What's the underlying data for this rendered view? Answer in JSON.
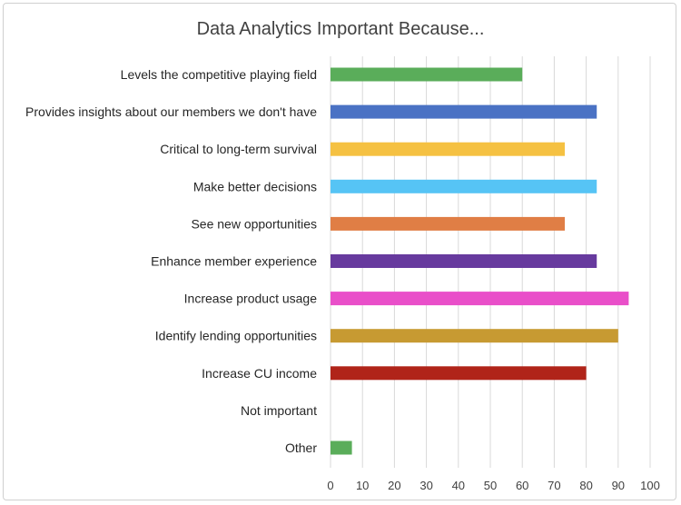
{
  "chart_data": {
    "type": "bar",
    "orientation": "horizontal",
    "title": "Data Analytics Important Because...",
    "categories": [
      "Levels the competitive playing field",
      "Provides insights about our members we don't have",
      "Critical to long-term survival",
      "Make better decisions",
      "See new opportunities",
      "Enhance member experience",
      "Increase product usage",
      "Identify lending opportunities",
      "Increase CU income",
      "Not important",
      "Other"
    ],
    "values": [
      60,
      83.3,
      73.3,
      83.3,
      73.3,
      83.3,
      93.3,
      90,
      80,
      0,
      6.7
    ],
    "colors": [
      "#5aad5a",
      "#4a72c4",
      "#f5c142",
      "#56c4f5",
      "#e07e45",
      "#673a9e",
      "#e94fc9",
      "#c79a32",
      "#b02419",
      "#5aad5a",
      "#5aad5a"
    ],
    "xlim": [
      0,
      100
    ],
    "xticks": [
      "0",
      "10",
      "20",
      "30",
      "40",
      "50",
      "60",
      "70",
      "80",
      "90",
      "100"
    ],
    "xlabel": "",
    "ylabel": "",
    "grid": true,
    "legend": "none"
  }
}
